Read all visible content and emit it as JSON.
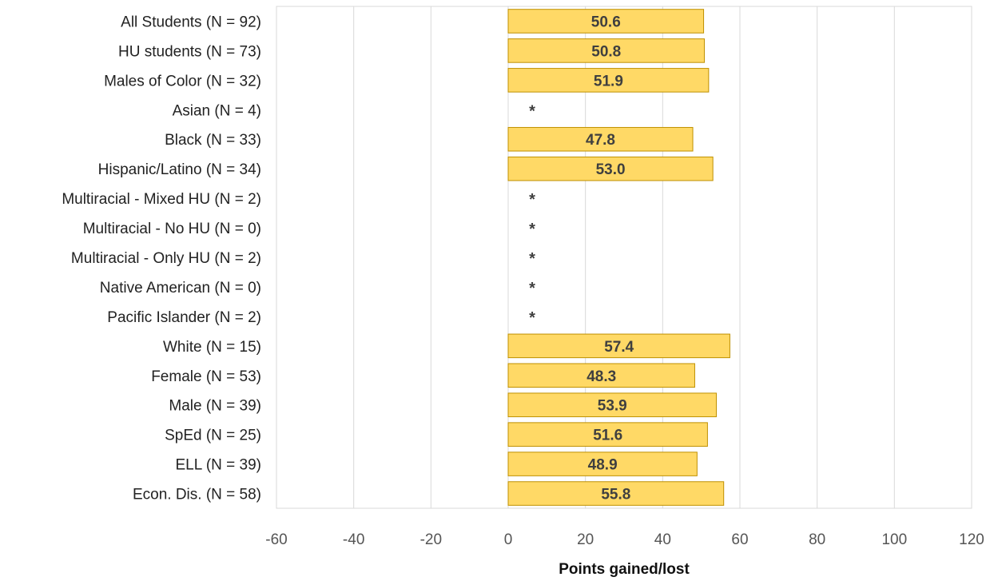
{
  "chart_data": {
    "type": "bar",
    "orientation": "horizontal",
    "categories": [
      "All Students (N = 92)",
      "HU students (N = 73)",
      "Males of Color (N = 32)",
      "Asian (N = 4)",
      "Black (N = 33)",
      "Hispanic/Latino (N = 34)",
      "Multiracial - Mixed HU (N = 2)",
      "Multiracial - No HU (N = 0)",
      "Multiracial - Only HU (N = 2)",
      "Native American (N = 0)",
      "Pacific Islander (N = 2)",
      "White (N = 15)",
      "Female (N = 53)",
      "Male (N = 39)",
      "SpEd (N = 25)",
      "ELL (N = 39)",
      "Econ. Dis. (N = 58)"
    ],
    "values": [
      50.6,
      50.8,
      51.9,
      null,
      47.8,
      53.0,
      null,
      null,
      null,
      null,
      null,
      57.4,
      48.3,
      53.9,
      51.6,
      48.9,
      55.8
    ],
    "value_labels": [
      "50.6",
      "50.8",
      "51.9",
      "*",
      "47.8",
      "53.0",
      "*",
      "*",
      "*",
      "*",
      "*",
      "57.4",
      "48.3",
      "53.9",
      "51.6",
      "48.9",
      "55.8"
    ],
    "suppressed_marker": "*",
    "xlabel": "Points gained/lost",
    "ylabel": "",
    "xlim": [
      -60,
      120
    ],
    "xticks": [
      -60,
      -40,
      -20,
      0,
      20,
      40,
      60,
      80,
      100,
      120
    ],
    "xtick_labels": [
      "-60",
      "-40",
      "-20",
      "0",
      "20",
      "40",
      "60",
      "80",
      "100",
      "120"
    ],
    "grid": true,
    "legend": "none",
    "colors": {
      "bar_fill": "#FFD966",
      "bar_stroke": "#BF9000",
      "grid": "#D9D9D9",
      "value_text": "#3F3F3F"
    }
  }
}
